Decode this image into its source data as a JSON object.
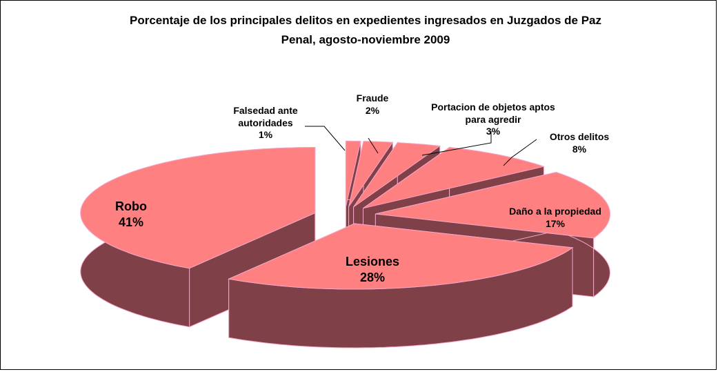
{
  "chart_data": {
    "type": "pie3d",
    "title": "Porcentaje de los principales delitos en expedientes ingresados en Juzgados de Paz Penal, agosto-noviembre 2009",
    "categories": [
      "Robo",
      "Lesiones",
      "Daño a la propiedad",
      "Otros delitos",
      "Portacion de objetos aptos para agredir",
      "Fraude",
      "Falsedad ante autoridades"
    ],
    "values": [
      41,
      28,
      17,
      8,
      3,
      2,
      1
    ],
    "value_labels": [
      "41%",
      "28%",
      "17%",
      "8%",
      "3%",
      "2%",
      "1%"
    ],
    "color": "#FF8080",
    "side_color": "#804048",
    "edge_color": "#F4A6C8"
  }
}
